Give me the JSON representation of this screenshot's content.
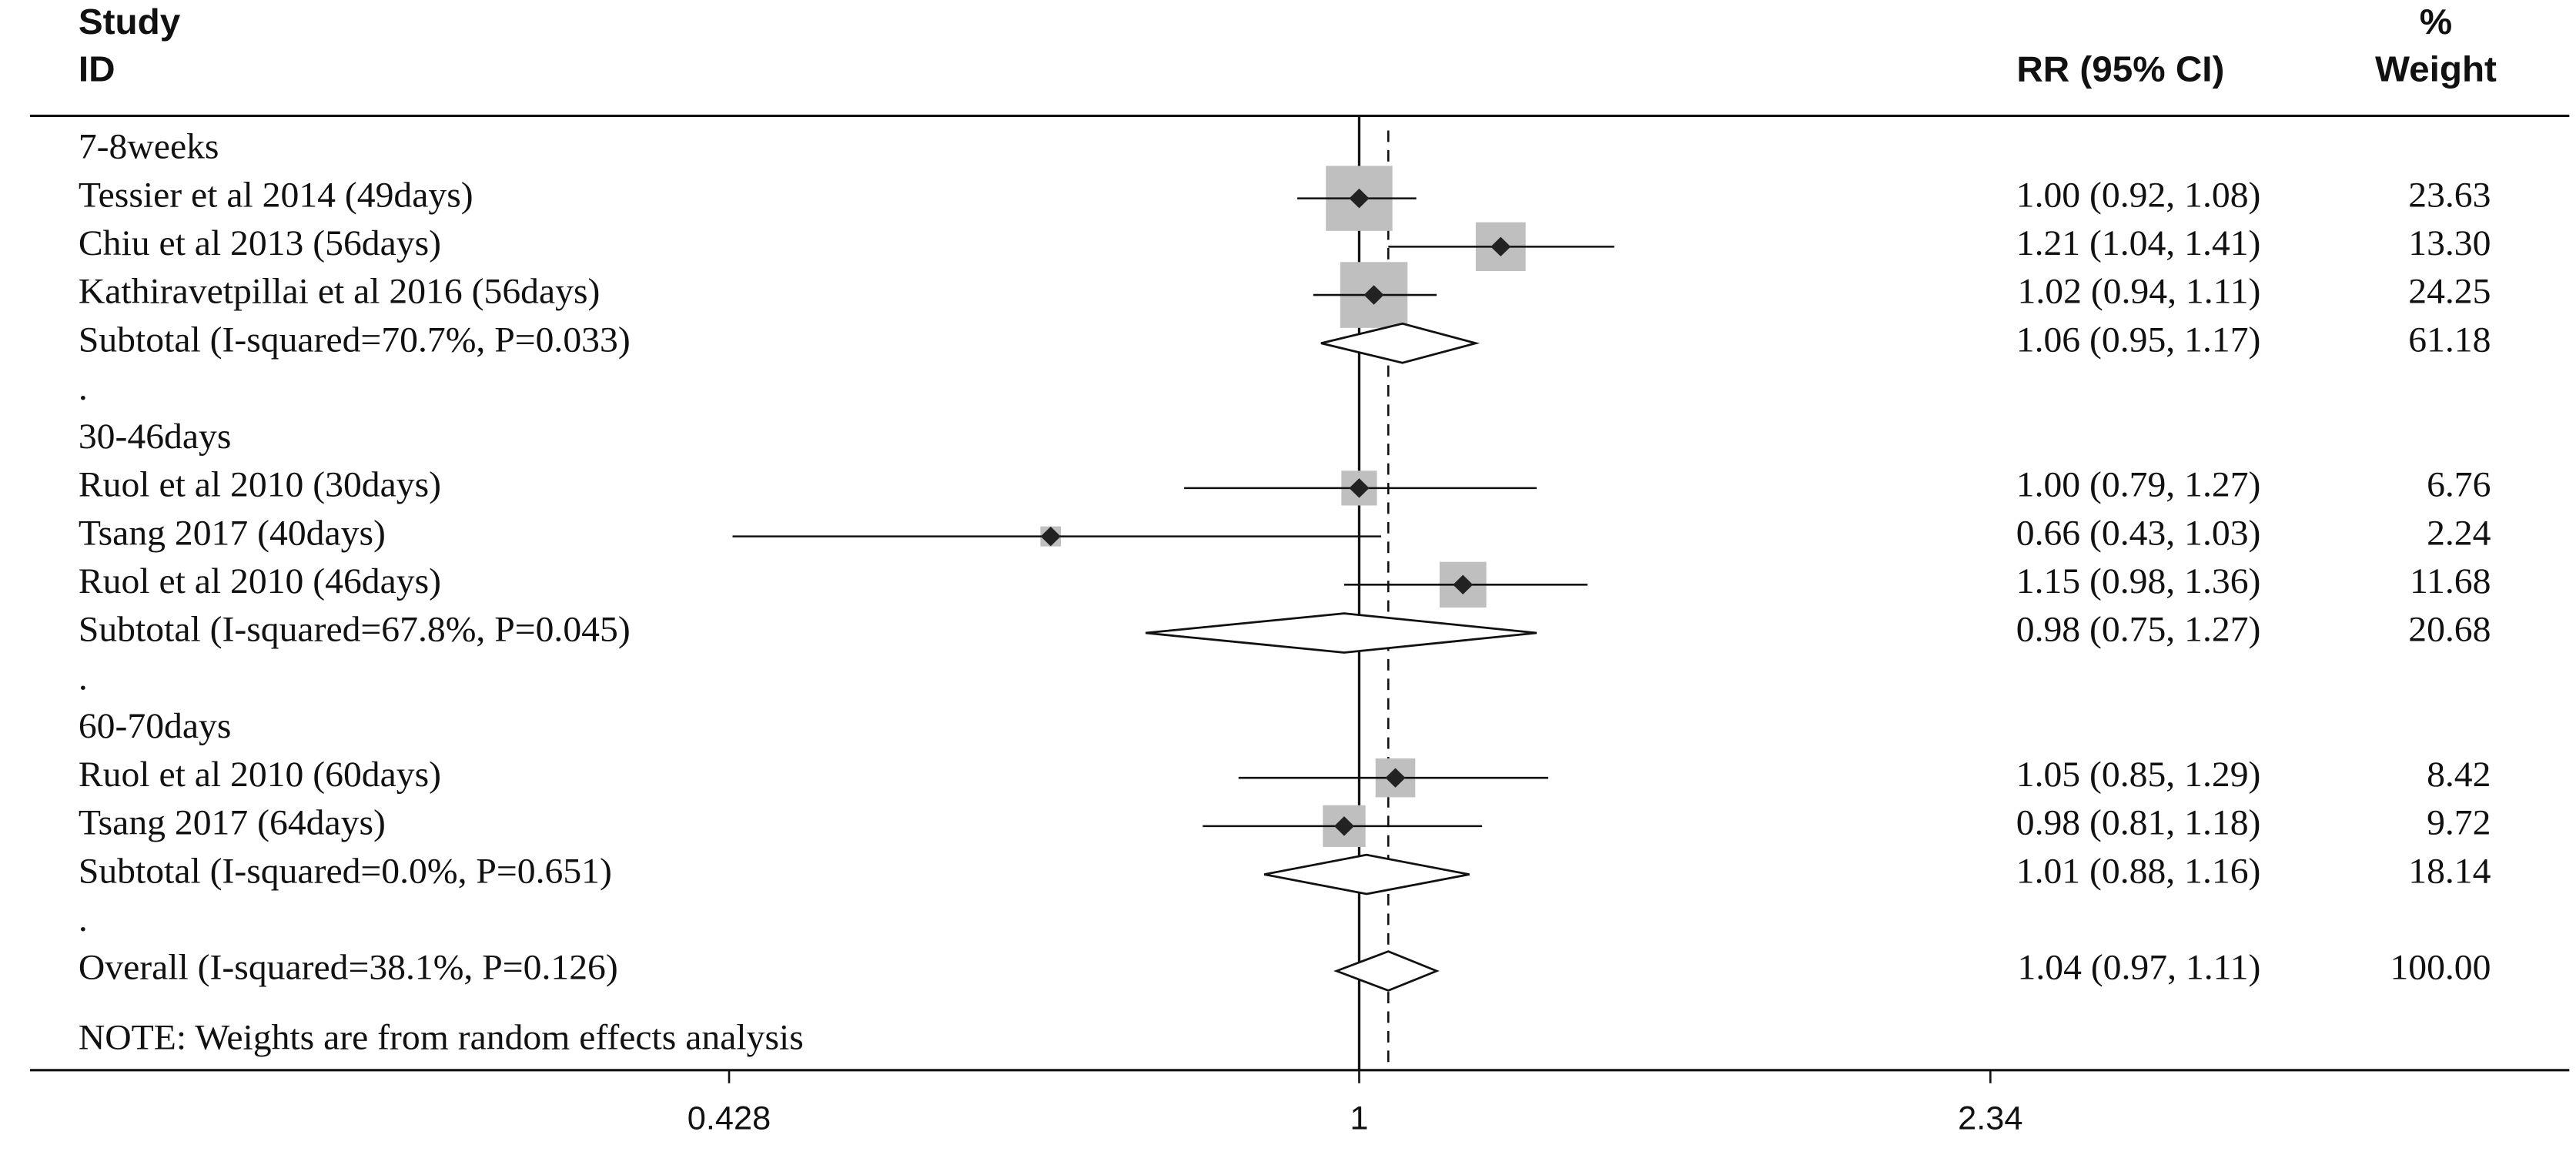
{
  "chart_data": {
    "type": "forest",
    "headers": {
      "study": "Study",
      "id": "ID",
      "rr": "RR (95% CI)",
      "pct": "%",
      "weight": "Weight"
    },
    "rows": [
      {
        "kind": "group",
        "label": "7-8weeks"
      },
      {
        "kind": "study",
        "label": "Tessier et al 2014 (49days)",
        "rr": 1.0,
        "lower": 0.92,
        "upper": 1.08,
        "ci_label": "1.00 (0.92, 1.08)",
        "weight": 23.63,
        "weight_label": "23.63"
      },
      {
        "kind": "study",
        "label": "Chiu et al 2013 (56days)",
        "rr": 1.21,
        "lower": 1.04,
        "upper": 1.41,
        "ci_label": "1.21 (1.04, 1.41)",
        "weight": 13.3,
        "weight_label": "13.30"
      },
      {
        "kind": "study",
        "label": "Kathiravetpillai et al 2016 (56days)",
        "rr": 1.02,
        "lower": 0.94,
        "upper": 1.11,
        "ci_label": "1.02 (0.94, 1.11)",
        "weight": 24.25,
        "weight_label": "24.25"
      },
      {
        "kind": "subtotal",
        "label": "Subtotal  (I-squared=70.7%, P=0.033)",
        "rr": 1.06,
        "lower": 0.95,
        "upper": 1.17,
        "ci_label": "1.06 (0.95, 1.17)",
        "weight": 61.18,
        "weight_label": "61.18"
      },
      {
        "kind": "spacer",
        "label": "."
      },
      {
        "kind": "group",
        "label": "30-46days"
      },
      {
        "kind": "study",
        "label": "Ruol et al 2010 (30days)",
        "rr": 1.0,
        "lower": 0.79,
        "upper": 1.27,
        "ci_label": "1.00 (0.79, 1.27)",
        "weight": 6.76,
        "weight_label": "6.76"
      },
      {
        "kind": "study",
        "label": "Tsang 2017 (40days)",
        "rr": 0.66,
        "lower": 0.43,
        "upper": 1.03,
        "ci_label": "0.66 (0.43, 1.03)",
        "weight": 2.24,
        "weight_label": "2.24"
      },
      {
        "kind": "study",
        "label": "Ruol et al 2010 (46days)",
        "rr": 1.15,
        "lower": 0.98,
        "upper": 1.36,
        "ci_label": "1.15 (0.98, 1.36)",
        "weight": 11.68,
        "weight_label": "11.68"
      },
      {
        "kind": "subtotal",
        "label": "Subtotal  (I-squared=67.8%, P=0.045)",
        "rr": 0.98,
        "lower": 0.75,
        "upper": 1.27,
        "ci_label": "0.98 (0.75, 1.27)",
        "weight": 20.68,
        "weight_label": "20.68"
      },
      {
        "kind": "spacer",
        "label": "."
      },
      {
        "kind": "group",
        "label": "60-70days"
      },
      {
        "kind": "study",
        "label": "Ruol et al 2010 (60days)",
        "rr": 1.05,
        "lower": 0.85,
        "upper": 1.29,
        "ci_label": "1.05 (0.85, 1.29)",
        "weight": 8.42,
        "weight_label": "8.42"
      },
      {
        "kind": "study",
        "label": "Tsang 2017 (64days)",
        "rr": 0.98,
        "lower": 0.81,
        "upper": 1.18,
        "ci_label": "0.98 (0.81, 1.18)",
        "weight": 9.72,
        "weight_label": "9.72"
      },
      {
        "kind": "subtotal",
        "label": "Subtotal  (I-squared=0.0%, P=0.651)",
        "rr": 1.01,
        "lower": 0.88,
        "upper": 1.16,
        "ci_label": "1.01 (0.88, 1.16)",
        "weight": 18.14,
        "weight_label": "18.14"
      },
      {
        "kind": "spacer",
        "label": "."
      },
      {
        "kind": "overall",
        "label": "Overall  (I-squared=38.1%, P=0.126)",
        "rr": 1.04,
        "lower": 0.97,
        "upper": 1.11,
        "ci_label": "1.04 (0.97, 1.11)",
        "weight": 100.0,
        "weight_label": "100.00"
      }
    ],
    "note": "NOTE: Weights are from random effects analysis",
    "log_x": true,
    "xlim": [
      0.428,
      2.34
    ],
    "xticks": [
      0.428,
      1,
      2.34
    ],
    "reference_line": 1,
    "square_color": "#bfbfbf"
  }
}
